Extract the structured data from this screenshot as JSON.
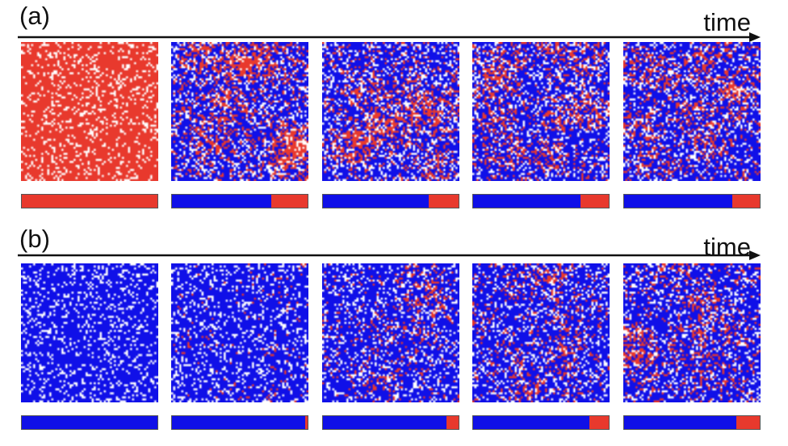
{
  "colors": {
    "cooperator": "#1010e8",
    "defector": "#e8392d",
    "empty": "#ffffff",
    "axis": "#111111"
  },
  "time_label": "time",
  "rows": [
    {
      "label": "(a)",
      "frames": [
        {
          "defector_fraction": 1.0,
          "vacancy_fraction": 0.18
        },
        {
          "defector_fraction": 0.27,
          "vacancy_fraction": 0.18
        },
        {
          "defector_fraction": 0.22,
          "vacancy_fraction": 0.18
        },
        {
          "defector_fraction": 0.21,
          "vacancy_fraction": 0.18
        },
        {
          "defector_fraction": 0.2,
          "vacancy_fraction": 0.18
        }
      ],
      "bars": [
        {
          "cooperator_fraction": 0.0
        },
        {
          "cooperator_fraction": 0.73
        },
        {
          "cooperator_fraction": 0.78
        },
        {
          "cooperator_fraction": 0.79
        },
        {
          "cooperator_fraction": 0.8
        }
      ]
    },
    {
      "label": "(b)",
      "frames": [
        {
          "defector_fraction": 0.0,
          "vacancy_fraction": 0.18
        },
        {
          "defector_fraction": 0.03,
          "vacancy_fraction": 0.18
        },
        {
          "defector_fraction": 0.1,
          "vacancy_fraction": 0.18
        },
        {
          "defector_fraction": 0.14,
          "vacancy_fraction": 0.18
        },
        {
          "defector_fraction": 0.17,
          "vacancy_fraction": 0.18
        }
      ],
      "bars": [
        {
          "cooperator_fraction": 1.0
        },
        {
          "cooperator_fraction": 0.98
        },
        {
          "cooperator_fraction": 0.91
        },
        {
          "cooperator_fraction": 0.86
        },
        {
          "cooperator_fraction": 0.83
        }
      ]
    }
  ]
}
